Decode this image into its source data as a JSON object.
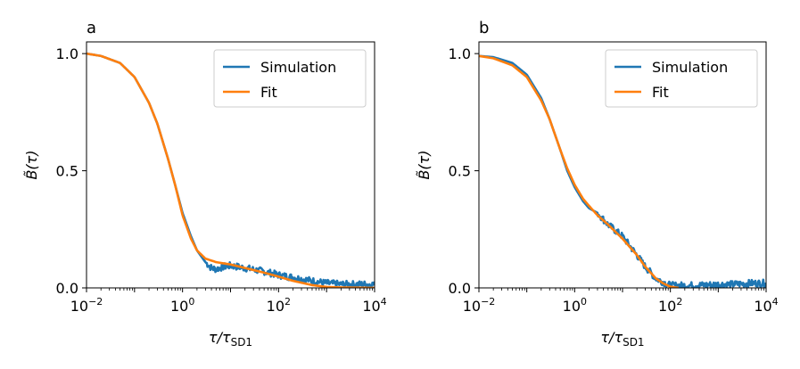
{
  "chart_data": [
    {
      "type": "line",
      "panel_label": "a",
      "xscale": "log",
      "xlim": [
        0.01,
        10000
      ],
      "ylim": [
        0.0,
        1.05
      ],
      "xlabel": "τ/τ",
      "xlabel_sub": "SD1",
      "ylabel": "B̃(τ)",
      "xticks": [
        {
          "value": 0.01,
          "base": "10",
          "exp": "−2"
        },
        {
          "value": 1,
          "base": "10",
          "exp": "0"
        },
        {
          "value": 100,
          "base": "10",
          "exp": "2"
        },
        {
          "value": 10000,
          "base": "10",
          "exp": "4"
        }
      ],
      "yticks": [
        {
          "value": 0.0,
          "label": "0.0"
        },
        {
          "value": 0.5,
          "label": "0.5"
        },
        {
          "value": 1.0,
          "label": "1.0"
        }
      ],
      "legend": {
        "placement": "top-right",
        "entries": [
          "Simulation",
          "Fit"
        ]
      },
      "series": [
        {
          "name": "Simulation",
          "color": "#1f77b4",
          "noisy_after": 3,
          "x": [
            0.01,
            0.02,
            0.05,
            0.1,
            0.2,
            0.3,
            0.5,
            0.7,
            1.0,
            1.5,
            2,
            3,
            4,
            5,
            7,
            10,
            20,
            50,
            100,
            200,
            500,
            1000,
            2000,
            5000,
            10000
          ],
          "y": [
            1.0,
            0.99,
            0.96,
            0.9,
            0.79,
            0.7,
            0.55,
            0.44,
            0.32,
            0.22,
            0.16,
            0.11,
            0.085,
            0.08,
            0.09,
            0.095,
            0.085,
            0.07,
            0.055,
            0.045,
            0.03,
            0.02,
            0.015,
            0.015,
            0.015
          ]
        },
        {
          "name": "Fit",
          "color": "#ff7f0e",
          "x": [
            0.01,
            0.02,
            0.05,
            0.1,
            0.2,
            0.3,
            0.5,
            0.7,
            1.0,
            1.5,
            2,
            3,
            5,
            7,
            10,
            20,
            50,
            100,
            200,
            500,
            1000,
            2000,
            5000,
            10000
          ],
          "y": [
            1.0,
            0.99,
            0.96,
            0.9,
            0.79,
            0.7,
            0.55,
            0.44,
            0.31,
            0.21,
            0.16,
            0.125,
            0.11,
            0.105,
            0.1,
            0.085,
            0.065,
            0.048,
            0.03,
            0.012,
            0.004,
            0.002,
            0.001,
            0.0
          ]
        }
      ]
    },
    {
      "type": "line",
      "panel_label": "b",
      "xscale": "log",
      "xlim": [
        0.01,
        10000
      ],
      "ylim": [
        0.0,
        1.05
      ],
      "xlabel": "τ/τ",
      "xlabel_sub": "SD1",
      "ylabel": "B̃(τ)",
      "xticks": [
        {
          "value": 0.01,
          "base": "10",
          "exp": "−2"
        },
        {
          "value": 1,
          "base": "10",
          "exp": "0"
        },
        {
          "value": 100,
          "base": "10",
          "exp": "2"
        },
        {
          "value": 10000,
          "base": "10",
          "exp": "4"
        }
      ],
      "yticks": [
        {
          "value": 0.0,
          "label": "0.0"
        },
        {
          "value": 0.5,
          "label": "0.5"
        },
        {
          "value": 1.0,
          "label": "1.0"
        }
      ],
      "legend": {
        "placement": "top-right",
        "entries": [
          "Simulation",
          "Fit"
        ]
      },
      "series": [
        {
          "name": "Simulation",
          "color": "#1f77b4",
          "noisy_after": 3,
          "x": [
            0.01,
            0.02,
            0.05,
            0.1,
            0.2,
            0.3,
            0.5,
            0.7,
            1.0,
            1.5,
            2,
            3,
            5,
            10,
            20,
            30,
            50,
            100,
            150,
            200,
            500,
            1000,
            2000,
            5000,
            10000
          ],
          "y": [
            0.99,
            0.985,
            0.96,
            0.91,
            0.81,
            0.72,
            0.59,
            0.5,
            0.43,
            0.37,
            0.34,
            0.32,
            0.27,
            0.22,
            0.14,
            0.09,
            0.04,
            0.01,
            0.01,
            0.01,
            0.012,
            0.015,
            0.015,
            0.02,
            0.02
          ]
        },
        {
          "name": "Fit",
          "color": "#ff7f0e",
          "x": [
            0.01,
            0.02,
            0.05,
            0.1,
            0.2,
            0.3,
            0.5,
            0.7,
            1.0,
            1.5,
            2,
            3,
            5,
            10,
            20,
            30,
            50,
            70,
            100,
            150
          ],
          "y": [
            0.99,
            0.98,
            0.95,
            0.9,
            0.8,
            0.72,
            0.59,
            0.51,
            0.44,
            0.38,
            0.35,
            0.31,
            0.27,
            0.21,
            0.14,
            0.09,
            0.04,
            0.02,
            0.005,
            0.0
          ]
        }
      ]
    }
  ]
}
